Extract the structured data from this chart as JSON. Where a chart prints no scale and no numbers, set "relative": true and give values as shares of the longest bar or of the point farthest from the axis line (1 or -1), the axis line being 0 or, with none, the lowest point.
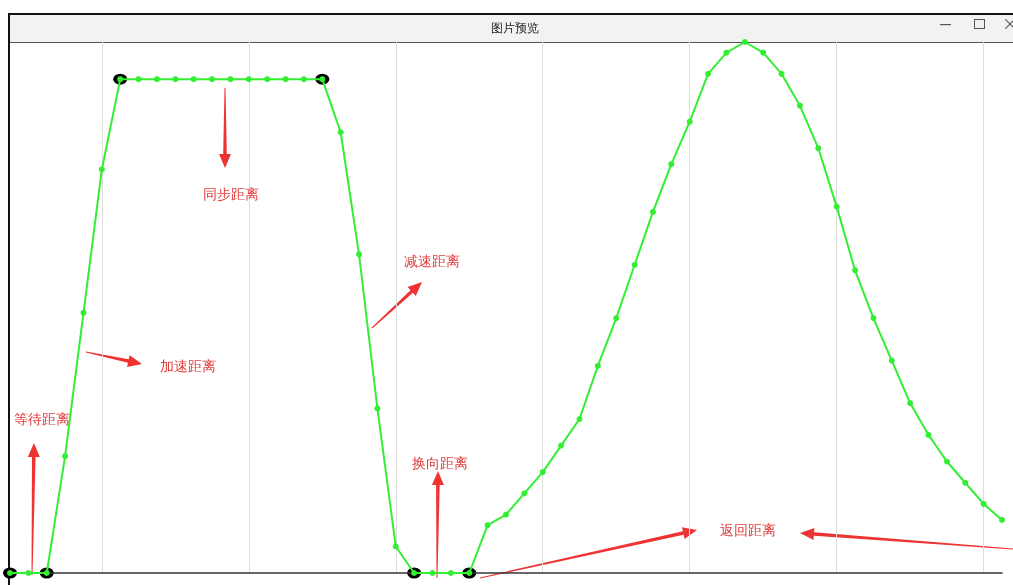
{
  "chart_data": {
    "type": "line",
    "title": "图片预览",
    "relative": true,
    "grid": "x",
    "marker": "circle",
    "line_style": "solid",
    "categories": [
      null,
      null,
      null,
      null,
      null,
      null,
      null,
      null,
      null,
      null,
      null,
      null,
      null,
      null,
      null,
      null,
      null,
      null,
      null,
      null,
      null,
      null,
      null,
      null,
      null,
      null,
      null,
      null,
      null,
      null,
      null,
      null,
      null,
      null,
      null,
      null,
      null,
      null,
      null,
      null,
      null,
      null,
      null,
      null,
      null,
      null,
      null,
      null,
      null,
      null,
      null,
      null,
      null,
      null,
      null
    ],
    "series": [
      {
        "color": "#33ee33",
        "values": [
          0,
          0,
          0,
          0.22,
          0.49,
          0.76,
          0.93,
          0.93,
          0.93,
          0.93,
          0.93,
          0.93,
          0.93,
          0.93,
          0.93,
          0.93,
          0.93,
          0.93,
          0.83,
          0.6,
          0.31,
          0.05,
          0,
          0,
          0,
          0,
          0.09,
          0.11,
          0.15,
          0.19,
          0.24,
          0.29,
          0.39,
          0.48,
          0.58,
          0.68,
          0.77,
          0.85,
          0.94,
          0.98,
          1,
          0.98,
          0.94,
          0.88,
          0.8,
          0.69,
          0.57,
          0.48,
          0.4,
          0.32,
          0.26,
          0.21,
          0.17,
          0.13,
          0.1
        ]
      }
    ],
    "annotations": [
      "同步距离",
      "减速距离",
      "加速距离",
      "等待距离",
      "换向距离",
      "返回距离"
    ]
  }
}
